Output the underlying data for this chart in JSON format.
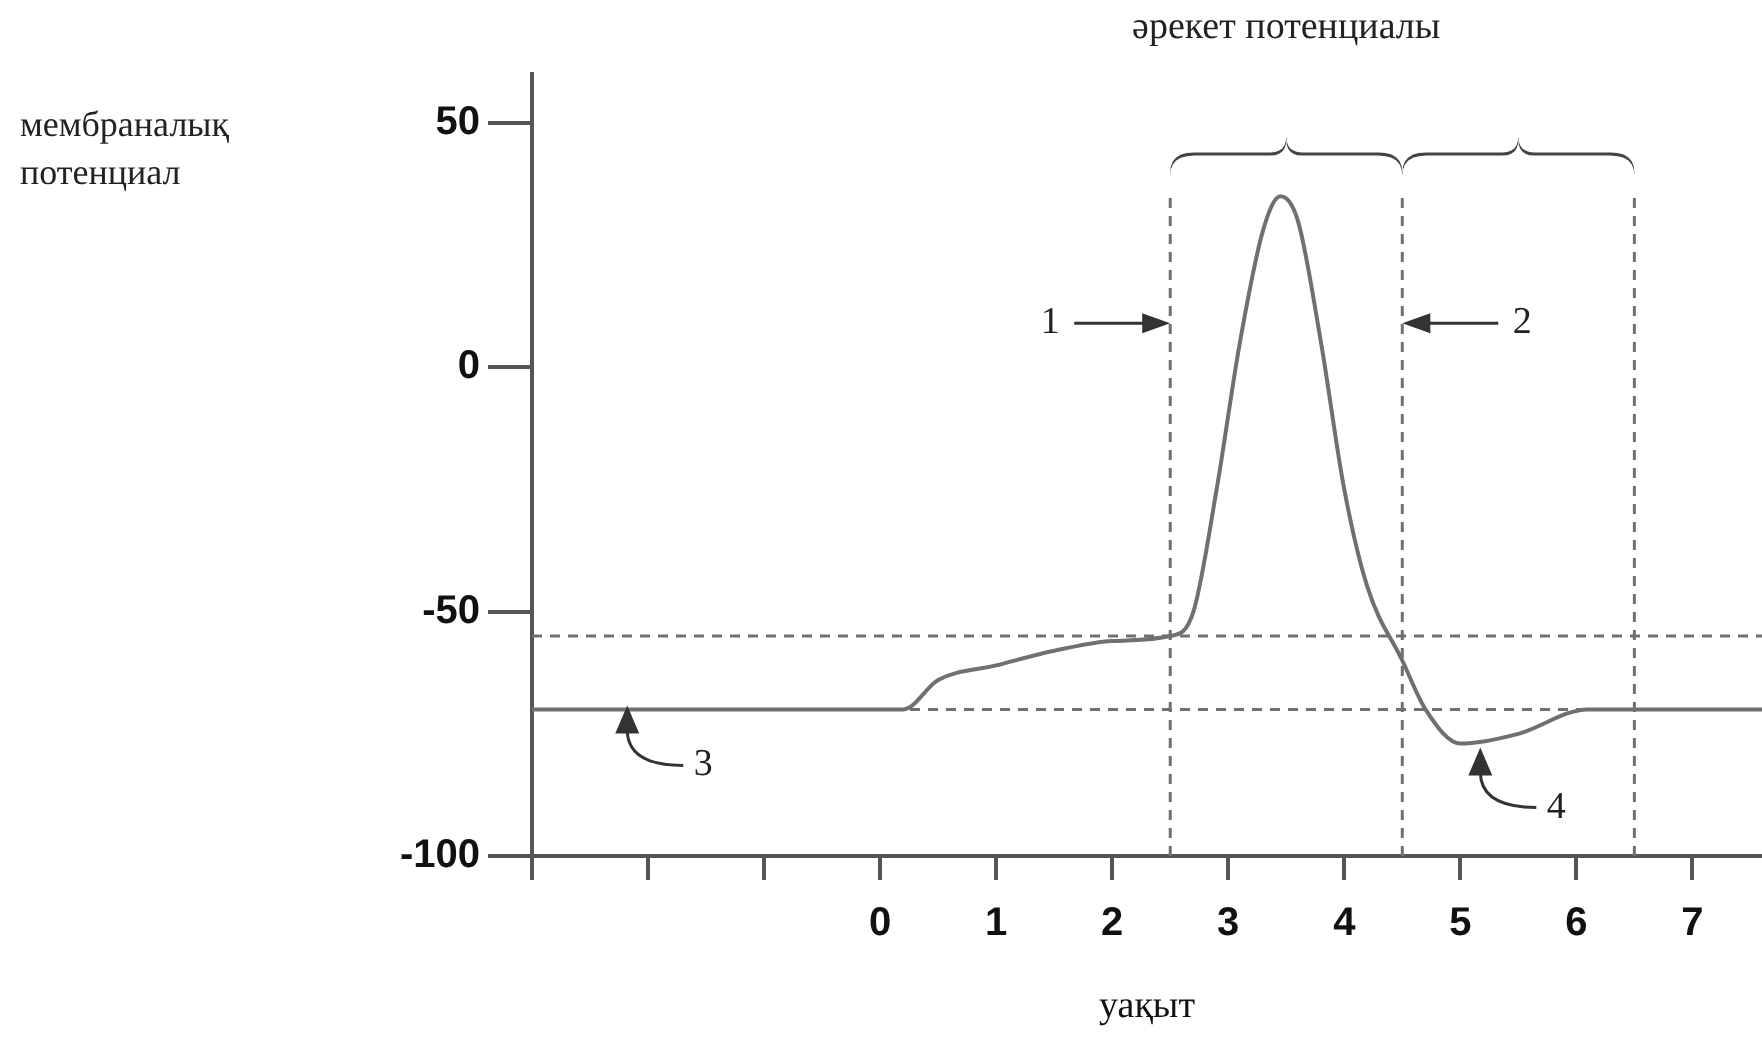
{
  "chart_data": {
    "type": "line",
    "ylabel": "мембраналық потенциал",
    "xlabel": "уақыт",
    "x": [
      -3,
      0.2,
      0.5,
      1,
      1.5,
      2,
      2.5,
      2.7,
      2.9,
      3.1,
      3.3,
      3.45,
      3.6,
      3.8,
      4,
      4.2,
      4.5,
      4.7,
      5,
      5.5,
      6.1,
      7.6
    ],
    "series": [
      {
        "color": "#707070",
        "values": [
          -70,
          -70,
          -64,
          -61,
          -58,
          -56,
          -55,
          -50,
          -25,
          5,
          28,
          35,
          30,
          5,
          -25,
          -45,
          -60,
          -70,
          -77,
          -75,
          -70,
          -70
        ]
      }
    ],
    "xlim": [
      -3,
      7.6
    ],
    "xticks": [
      {
        "value": -3,
        "label": null
      },
      {
        "value": -2,
        "label": null
      },
      {
        "value": -1,
        "label": null
      },
      0,
      1,
      2,
      3,
      4,
      5,
      6,
      7
    ],
    "ylim": [
      -100,
      60
    ],
    "yticks": [
      -100,
      -50,
      0,
      50
    ],
    "ref_lines": [
      {
        "axis": "y",
        "value": -55,
        "color": "#707070",
        "line_style": "dashed"
      },
      {
        "axis": "y",
        "value": -70,
        "color": "#707070",
        "line_style": "dashed"
      },
      {
        "axis": "x",
        "value": 2.5,
        "color": "#707070",
        "line_style": "dashed"
      },
      {
        "axis": "x",
        "value": 4.5,
        "color": "#707070",
        "line_style": "dashed"
      },
      {
        "axis": "x",
        "value": 6.5,
        "color": "#707070",
        "line_style": "dashed"
      }
    ],
    "annotations": [
      "әрекет потенциалы",
      {
        "text": "1",
        "x": 2.5,
        "y": 9
      },
      {
        "text": "2",
        "x": 4.5,
        "y": 9
      },
      {
        "text": "3",
        "x": -2.3,
        "y": -70
      },
      {
        "text": "4",
        "x": 5,
        "y": -77
      }
    ],
    "grid": false,
    "legend": false,
    "marker": "none",
    "line_style": "solid"
  }
}
